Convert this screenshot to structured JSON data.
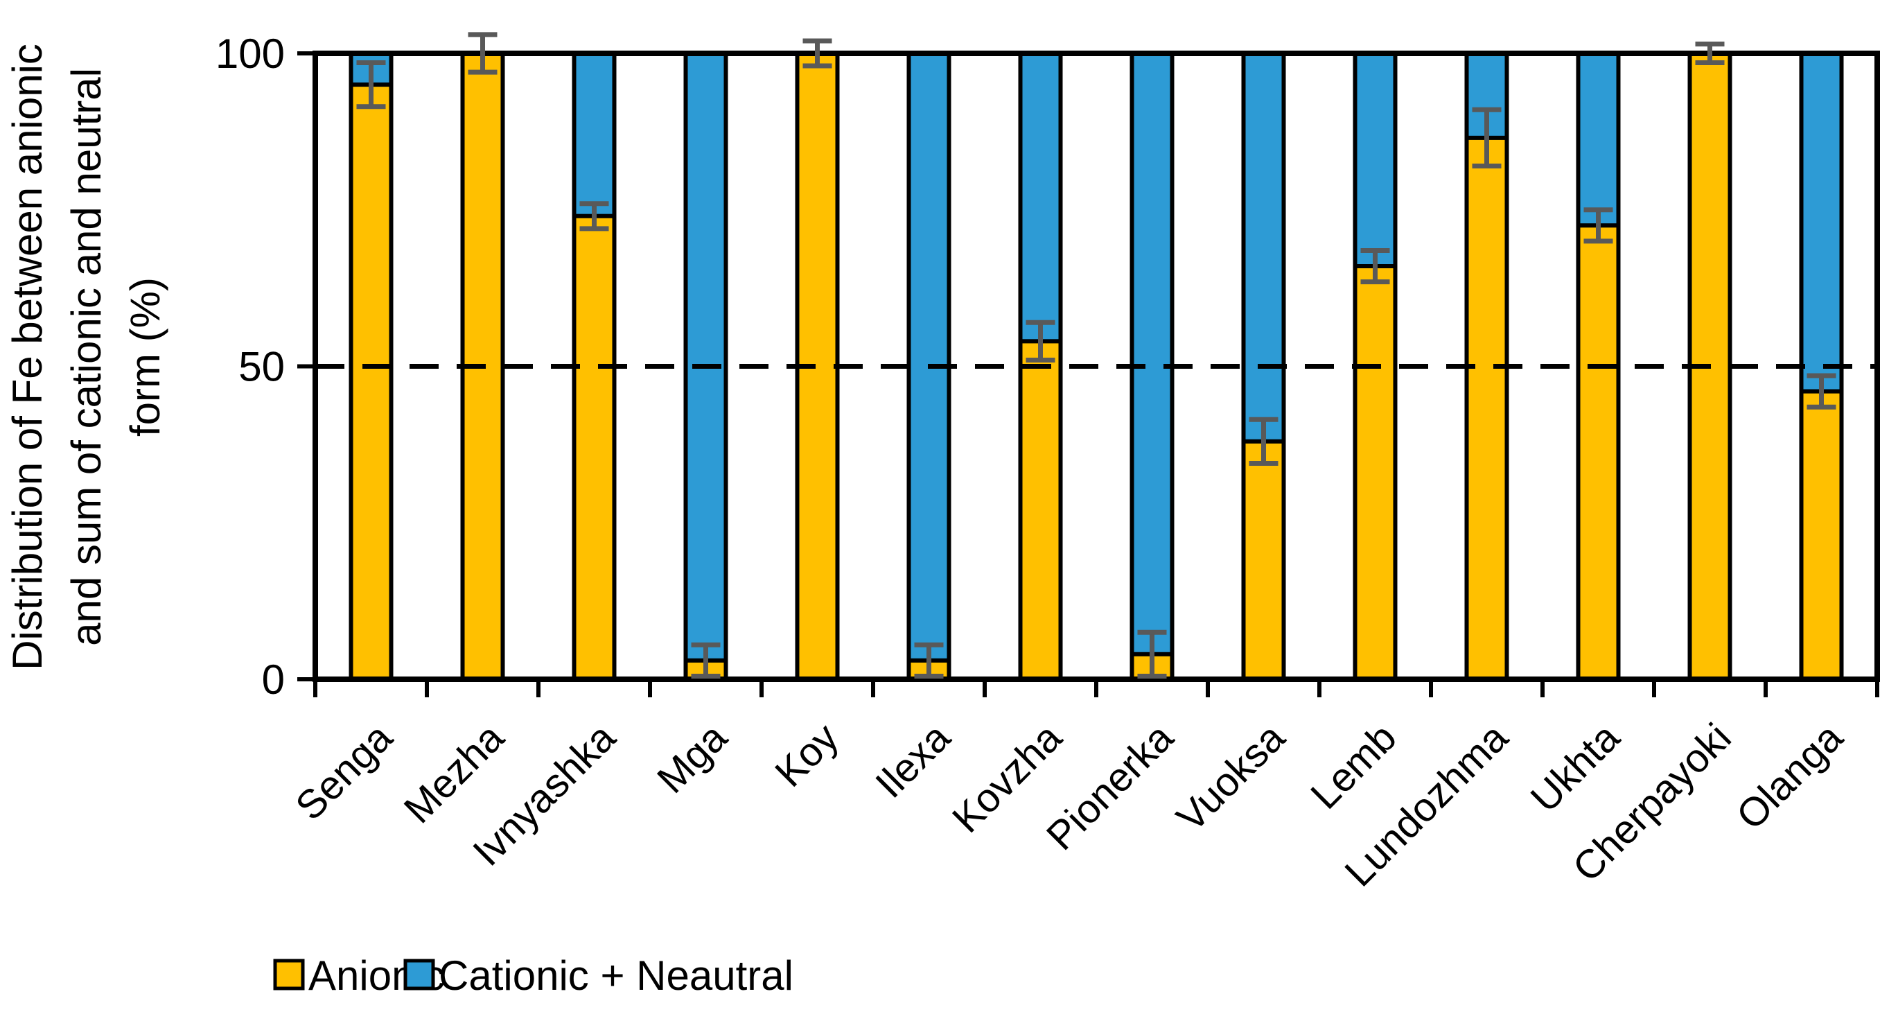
{
  "chart_data": {
    "type": "bar",
    "stacked": true,
    "categories": [
      "Senga",
      "Mezha",
      "Ivnyashka",
      "Mga",
      "Koy",
      "Ilexa",
      "Kovzha",
      "Pionerka",
      "Vuoksa",
      "Lemb",
      "Lundozhma",
      "Ukhta",
      "Cherpayoki",
      "Olanga"
    ],
    "series": [
      {
        "name": "Anionic",
        "color": "#FFC000",
        "values": [
          95,
          100,
          74,
          3,
          100,
          3,
          54,
          4,
          38,
          66,
          86.5,
          72.5,
          100,
          46
        ]
      },
      {
        "name": "Cationic + Neautral",
        "color": "#2D9BD5",
        "values": [
          5,
          0,
          26,
          97,
          0,
          97,
          46,
          96,
          62,
          34,
          13.5,
          27.5,
          0,
          54
        ]
      }
    ],
    "error_bars": {
      "attached_to_series": "Anionic",
      "color": "#595959",
      "plus_minus": [
        3.5,
        3,
        2,
        2.5,
        2,
        2.5,
        3,
        3.5,
        3.5,
        2.5,
        4.5,
        2.5,
        1.5,
        2.5
      ]
    },
    "ylabel": "Distribution of Fe between anionic and sum of cationic and neutral form (%)",
    "ylabel_lines": [
      "Distribution of Fe between anionic",
      "and sum of cationic and neutral",
      "form (%)"
    ],
    "xlabel": "",
    "yticks": [
      0,
      50,
      100
    ],
    "ylim": [
      0,
      100
    ],
    "grid": false,
    "reference_line": {
      "y": 50,
      "style": "dashed",
      "color": "#000000"
    },
    "x_tick_label_rotation": -45,
    "axis_color": "#000000",
    "legend": {
      "position": "bottom-left",
      "entries": [
        "Anionic",
        "Cationic + Neautral"
      ]
    }
  }
}
